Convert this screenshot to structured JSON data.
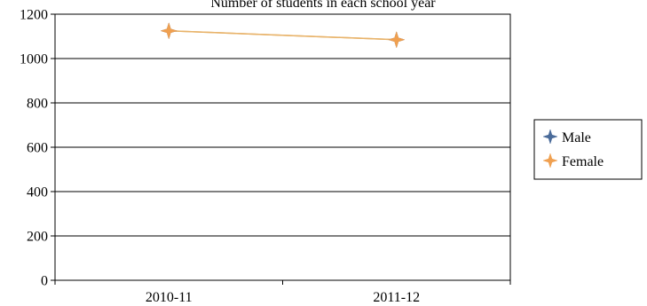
{
  "chart_data": {
    "type": "line",
    "title": "Number of students in each school year",
    "categories": [
      "2010-11",
      "2011-12"
    ],
    "series": [
      {
        "name": "Male",
        "values": [
          1125,
          1085
        ],
        "color": "#4a6b9a",
        "marker": "star4"
      },
      {
        "name": "Female",
        "values": [
          1125,
          1085
        ],
        "color": "#f0a050",
        "marker": "star4"
      }
    ],
    "ylim": [
      0,
      1200
    ],
    "yticks": [
      0,
      200,
      400,
      600,
      800,
      1000,
      1200
    ],
    "grid": true,
    "legend": "right",
    "line_color": "#e8b36a",
    "axis_color": "#000000"
  }
}
